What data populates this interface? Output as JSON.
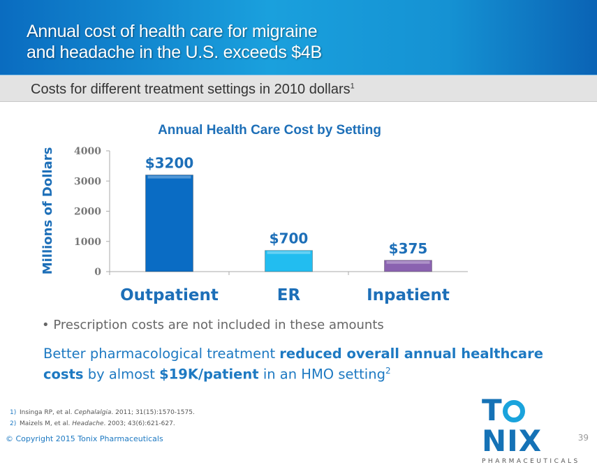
{
  "header": {
    "title_line1": "Annual cost of health care for migraine",
    "title_line2": "and headache in the U.S. exceeds $4B"
  },
  "subheader": {
    "text": "Costs for different treatment settings in 2010 dollars",
    "sup": "1"
  },
  "chart_data": {
    "type": "bar",
    "title": "Annual Health Care Cost by Setting",
    "ylabel": "Millions of Dollars",
    "xlabel": "",
    "categories": [
      "Outpatient",
      "ER",
      "Inpatient"
    ],
    "values": [
      3200,
      700,
      375
    ],
    "data_labels": [
      "$3200",
      "$700",
      "$375"
    ],
    "colors": [
      "#0a6cc4",
      "#22bdf0",
      "#8a62b0"
    ],
    "ylim": [
      0,
      4000
    ],
    "yticks": [
      "0",
      "1000",
      "2000",
      "3000",
      "4000"
    ],
    "grid": false
  },
  "bullet": "Prescription costs are not included in these amounts",
  "statement": {
    "p1": "Better pharmacological treatment ",
    "b1": "reduced overall annual healthcare costs",
    "p2": " by almost ",
    "b2": "$19K/patient",
    "p3": " in an HMO setting",
    "sup": "2"
  },
  "references": [
    {
      "num": "1)",
      "authors": "Insinga RP, et al. ",
      "journal": "Cephalalgia",
      "rest": ". 2011; 31(15):1570-1575."
    },
    {
      "num": "2)",
      "authors": "Maizels M, et al. ",
      "journal": "Headache",
      "rest": ". 2003; 43(6):621-627."
    }
  ],
  "footer": {
    "copyright": "© Copyright 2015 Tonix Pharmaceuticals",
    "page": "39"
  },
  "logo": {
    "word_t": "T",
    "word_rest": "NIX",
    "sub": "PHARMACEUTICALS"
  }
}
